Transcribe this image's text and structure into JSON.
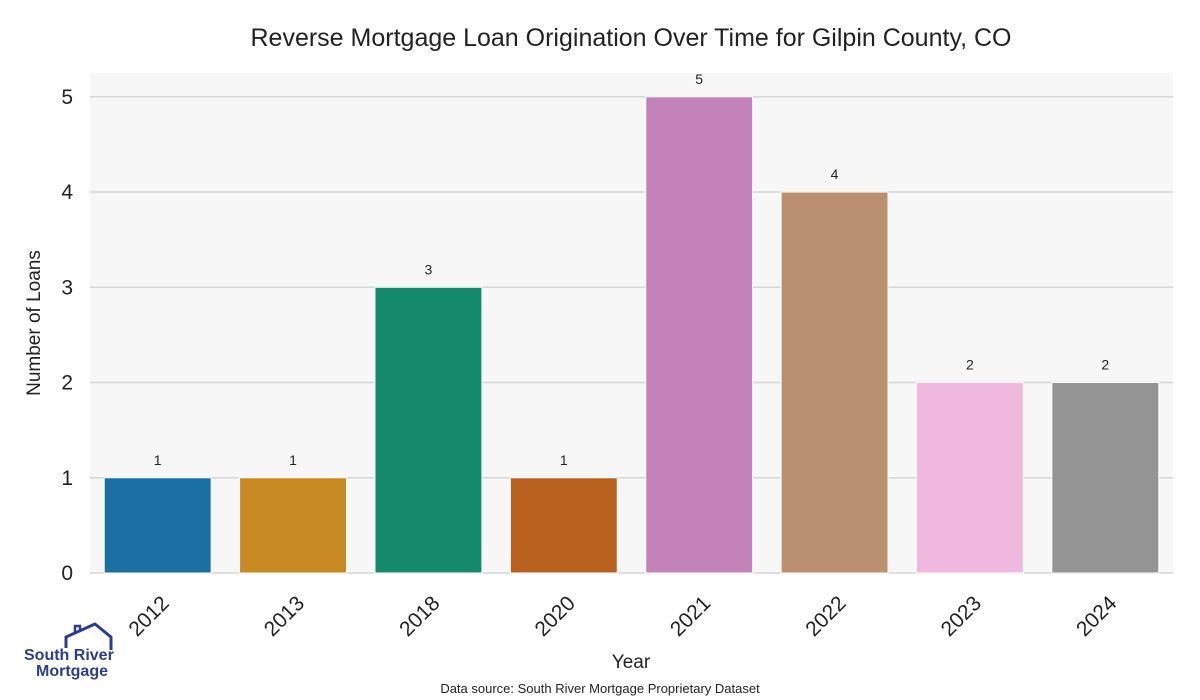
{
  "chart_data": {
    "type": "bar",
    "title": "Reverse Mortgage Loan Origination Over Time for Gilpin County, CO",
    "xlabel": "Year",
    "ylabel": "Number of Loans",
    "categories": [
      "2012",
      "2013",
      "2018",
      "2020",
      "2021",
      "2022",
      "2023",
      "2024"
    ],
    "values": [
      1,
      1,
      3,
      1,
      5,
      4,
      2,
      2
    ],
    "colors": [
      "#1a6fa3",
      "#c78a22",
      "#158a6a",
      "#b8611f",
      "#c383b8",
      "#bb9070",
      "#f0b8de",
      "#949494"
    ],
    "ylim": [
      0,
      5.25
    ],
    "yticks": [
      0,
      1,
      2,
      3,
      4,
      5
    ],
    "grid": true,
    "data_labels": true
  },
  "footer": {
    "source": "Data source: South River Mortgage Proprietary Dataset"
  },
  "logo": {
    "line1": "South River",
    "line2": "Mortgage",
    "icon": "house-icon"
  }
}
